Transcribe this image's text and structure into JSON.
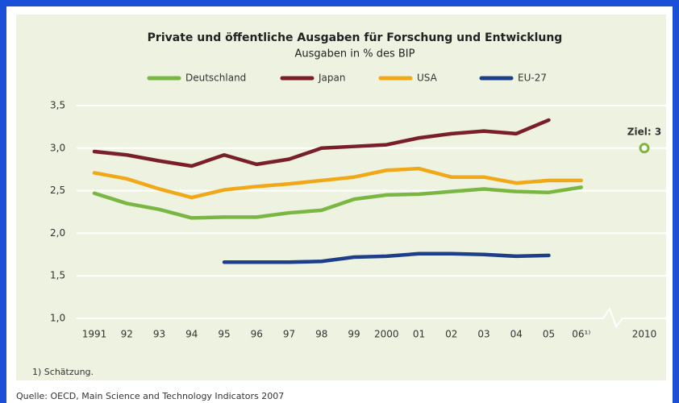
{
  "chart_data": {
    "type": "line",
    "title": "Private und öffentliche Ausgaben für Forschung und Entwicklung",
    "subtitle": "Ausgaben in % des BIP",
    "categories": [
      "1991",
      "92",
      "93",
      "94",
      "95",
      "96",
      "97",
      "98",
      "99",
      "2000",
      "01",
      "02",
      "03",
      "04",
      "05",
      "06¹⁾",
      "2010"
    ],
    "series": [
      {
        "name": "Deutschland",
        "color": "#7ab642",
        "values": [
          2.47,
          2.35,
          2.28,
          2.18,
          2.19,
          2.19,
          2.24,
          2.27,
          2.4,
          2.45,
          2.46,
          2.49,
          2.52,
          2.49,
          2.48,
          2.54,
          null
        ]
      },
      {
        "name": "Japan",
        "color": "#7a1e2a",
        "values": [
          2.96,
          2.92,
          2.85,
          2.79,
          2.92,
          2.81,
          2.87,
          3.0,
          3.02,
          3.04,
          3.12,
          3.17,
          3.2,
          3.17,
          3.33,
          null,
          null
        ]
      },
      {
        "name": "USA",
        "color": "#f0a818",
        "values": [
          2.71,
          2.64,
          2.52,
          2.42,
          2.51,
          2.55,
          2.58,
          2.62,
          2.66,
          2.74,
          2.76,
          2.66,
          2.66,
          2.59,
          2.62,
          2.62,
          null
        ]
      },
      {
        "name": "EU-27",
        "color": "#1d3f8a",
        "values": [
          null,
          null,
          null,
          null,
          1.66,
          1.66,
          1.66,
          1.67,
          1.72,
          1.73,
          1.76,
          1.76,
          1.75,
          1.73,
          1.74,
          null,
          null
        ]
      }
    ],
    "target": {
      "label": "Ziel: 3",
      "value": 3,
      "color": "#7ab642"
    },
    "ylim": [
      1.0,
      3.5
    ],
    "yticks": [
      {
        "value": 1.0,
        "label": "1,0"
      },
      {
        "value": 1.5,
        "label": "1,5"
      },
      {
        "value": 2.0,
        "label": "2,0"
      },
      {
        "value": 2.5,
        "label": "2,5"
      },
      {
        "value": 3.0,
        "label": "3,0"
      },
      {
        "value": 3.5,
        "label": "3,5"
      }
    ],
    "grid": true,
    "legend": "top",
    "footnote": "1) Schätzung.",
    "source": "Quelle: OECD, Main Science and Technology Indicators 2007"
  }
}
